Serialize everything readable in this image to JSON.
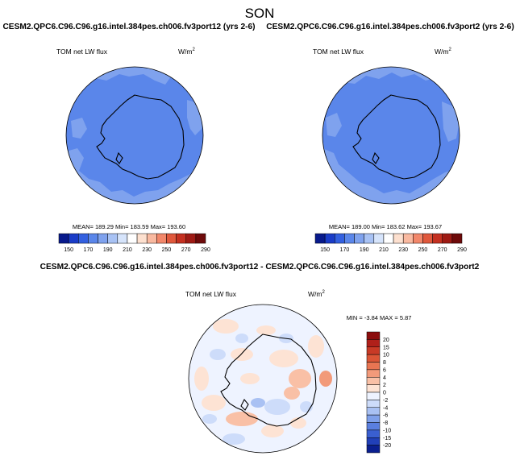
{
  "page_title": "SON",
  "colors": {
    "map_base": "#5a86ea",
    "map_patch": "#7fa2ee",
    "diff_base": "#eef3ff",
    "coast": "#000000"
  },
  "chart_data": [
    {
      "type": "heatmap",
      "projection": "south-polar-stereographic",
      "title": "CESM2.QPC6.C96.C96.g16.intel.384pes.ch006.fv3port12 (yrs 2-6)",
      "variable": "TOM net LW flux",
      "units": "W/m",
      "units_exponent": "2",
      "stats_text": "MEAN= 189.29  Min= 183.59  Max= 193.60",
      "stats": {
        "mean": 189.29,
        "min": 183.59,
        "max": 193.6
      },
      "colorbar": {
        "levels": [
          "150",
          "170",
          "190",
          "210",
          "230",
          "250",
          "270",
          "290"
        ],
        "colors": [
          "#081a8c",
          "#1a3cc8",
          "#3360e0",
          "#5a86ea",
          "#7fa2ee",
          "#a8c2f4",
          "#d6e4fb",
          "#ffffff",
          "#fde0cf",
          "#f9b9a0",
          "#f2876a",
          "#e0583c",
          "#c43020",
          "#9e1a14",
          "#6e0a0a"
        ]
      }
    },
    {
      "type": "heatmap",
      "projection": "south-polar-stereographic",
      "title": "CESM2.QPC6.C96.C96.g16.intel.384pes.ch006.fv3port2 (yrs 2-6)",
      "variable": "TOM net LW flux",
      "units": "W/m",
      "units_exponent": "2",
      "stats_text": "MEAN= 189.00  Min= 183.62  Max= 193.67",
      "stats": {
        "mean": 189.0,
        "min": 183.62,
        "max": 193.67
      },
      "colorbar": {
        "levels": [
          "150",
          "170",
          "190",
          "210",
          "230",
          "250",
          "270",
          "290"
        ],
        "colors": [
          "#081a8c",
          "#1a3cc8",
          "#3360e0",
          "#5a86ea",
          "#7fa2ee",
          "#a8c2f4",
          "#d6e4fb",
          "#ffffff",
          "#fde0cf",
          "#f9b9a0",
          "#f2876a",
          "#e0583c",
          "#c43020",
          "#9e1a14",
          "#6e0a0a"
        ]
      }
    },
    {
      "type": "heatmap",
      "projection": "south-polar-stereographic",
      "title": "CESM2.QPC6.C96.C96.g16.intel.384pes.ch006.fv3port12 - CESM2.QPC6.C96.C96.g16.intel.384pes.ch006.fv3port2",
      "variable": "TOM net LW flux",
      "units": "W/m",
      "units_exponent": "2",
      "stats_text": "MIN = -3.84  MAX =  5.87",
      "stats": {
        "min": -3.84,
        "max": 5.87
      },
      "colorbar": {
        "levels": [
          "20",
          "15",
          "10",
          "8",
          "6",
          "4",
          "2",
          "0",
          "-2",
          "-4",
          "-6",
          "-8",
          "-10",
          "-15",
          "-20"
        ],
        "colors": [
          "#8b0d0d",
          "#b0201a",
          "#c83a26",
          "#db5536",
          "#e97552",
          "#f29a7a",
          "#f9c0a6",
          "#fde3d4",
          "#eef3ff",
          "#cddcfa",
          "#a9c1f3",
          "#7fa0ea",
          "#5a7fdf",
          "#3a5fd0",
          "#2140b8",
          "#0a1f8f"
        ]
      }
    }
  ]
}
